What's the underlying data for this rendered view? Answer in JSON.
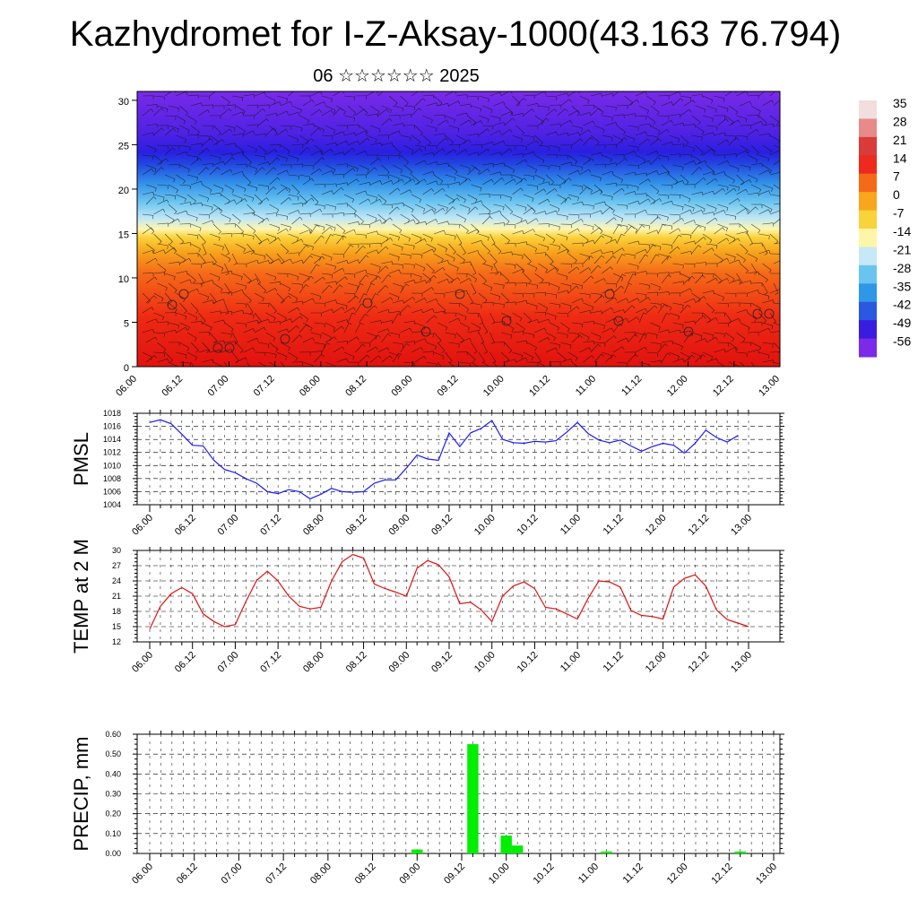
{
  "title": "Kazhydromet for I-Z-Aksay-1000(43.163 76.794)",
  "date_line": "06 ☆☆☆☆☆☆ 2025",
  "chart_data": [
    {
      "type": "heatmap",
      "panel": "upper-air",
      "description_axis": "height (km)",
      "y_ticks": [
        "0",
        "5",
        "10",
        "15",
        "20",
        "25",
        "30"
      ],
      "ylim": [
        0,
        31
      ],
      "x_ticks": [
        "06.00",
        "06.12",
        "07.00",
        "07.12",
        "08.00",
        "08.12",
        "09.00",
        "09.12",
        "10.00",
        "10.12",
        "11.00",
        "11.12",
        "12.00",
        "12.12",
        "13.00"
      ],
      "colorbar_labels": [
        "35",
        "28",
        "21",
        "14",
        "7",
        "0",
        "-7",
        "-14",
        "-21",
        "-28",
        "-35",
        "-42",
        "-49",
        "-56"
      ],
      "colorbar_colors": [
        "#f2dede",
        "#e88a8a",
        "#d93a3a",
        "#ee2a1e",
        "#f56a18",
        "#f7a61e",
        "#f9d33a",
        "#fdf6a8",
        "#c7e8f6",
        "#6ac4f0",
        "#2f97e8",
        "#2a58e0",
        "#3a1be0",
        "#7a2ae8"
      ],
      "wind_barbs": true
    },
    {
      "type": "line",
      "ylabel": "PMSL",
      "ylim": [
        1004,
        1018
      ],
      "y_ticks": [
        "1004",
        "1006",
        "1008",
        "1010",
        "1012",
        "1014",
        "1016",
        "1018"
      ],
      "x_ticks": [
        "06.00",
        "06.12",
        "07.00",
        "07.12",
        "08.00",
        "08.12",
        "09.00",
        "09.12",
        "10.00",
        "10.12",
        "11.00",
        "11.12",
        "12.00",
        "12.12",
        "13.00"
      ],
      "x_step_hours": 3,
      "color": "#1a1aff",
      "values": [
        1016.6,
        1017.0,
        1016.4,
        1014.8,
        1013.1,
        1013.0,
        1010.8,
        1009.4,
        1008.9,
        1008.0,
        1007.3,
        1006.0,
        1005.7,
        1006.3,
        1006.0,
        1004.9,
        1005.6,
        1006.5,
        1006.0,
        1005.9,
        1006.0,
        1007.3,
        1007.8,
        1007.8,
        1009.6,
        1011.6,
        1011.0,
        1010.8,
        1015.0,
        1012.9,
        1015.0,
        1015.7,
        1016.9,
        1014.0,
        1013.5,
        1013.4,
        1013.7,
        1013.6,
        1013.8,
        1015.1,
        1016.6,
        1014.9,
        1013.9,
        1013.5,
        1013.9,
        1013.0,
        1012.2,
        1012.9,
        1013.4,
        1013.1,
        1011.9,
        1013.4,
        1015.4,
        1014.3,
        1013.6,
        1014.6
      ]
    },
    {
      "type": "line",
      "ylabel": "TEMP at 2 M",
      "ylim": [
        12,
        30
      ],
      "y_ticks": [
        "12",
        "15",
        "18",
        "21",
        "24",
        "27",
        "30"
      ],
      "x_ticks": [
        "06.00",
        "06.12",
        "07.00",
        "07.12",
        "08.00",
        "08.12",
        "09.00",
        "09.12",
        "10.00",
        "10.12",
        "11.00",
        "11.12",
        "12.00",
        "12.12",
        "13.00"
      ],
      "x_step_hours": 3,
      "color": "#e01010",
      "values": [
        14.5,
        19.0,
        21.5,
        22.7,
        21.5,
        17.5,
        16.0,
        15.0,
        15.4,
        20.0,
        24.1,
        25.9,
        24.0,
        21.0,
        19.0,
        18.5,
        18.8,
        24.0,
        27.8,
        29.2,
        28.5,
        23.4,
        22.5,
        21.8,
        21.0,
        26.5,
        28.0,
        27.2,
        24.8,
        19.5,
        19.8,
        18.3,
        16.0,
        21.0,
        23.0,
        23.8,
        22.5,
        18.8,
        18.5,
        17.5,
        16.5,
        20.6,
        24.0,
        23.8,
        22.8,
        18.2,
        17.2,
        17.0,
        16.5,
        22.8,
        24.5,
        25.2,
        23.0,
        18.3,
        16.4,
        15.7,
        15.0
      ]
    },
    {
      "type": "bar",
      "ylabel": "PRECIP, mm",
      "ylim": [
        0,
        0.6
      ],
      "y_ticks": [
        "0.00",
        "0.10",
        "0.20",
        "0.30",
        "0.40",
        "0.50",
        "0.60"
      ],
      "x_ticks": [
        "06.00",
        "06.12",
        "07.00",
        "07.12",
        "08.00",
        "08.12",
        "09.00",
        "09.12",
        "10.00",
        "10.12",
        "11.00",
        "11.12",
        "12.00",
        "12.12",
        "13.00"
      ],
      "x_step_hours": 3,
      "color": "#00ee00",
      "bars": [
        {
          "hour": 72,
          "value": 0.02
        },
        {
          "hour": 87,
          "value": 0.55
        },
        {
          "hour": 96,
          "value": 0.09
        },
        {
          "hour": 99,
          "value": 0.04
        },
        {
          "hour": 123,
          "value": 0.01
        },
        {
          "hour": 159,
          "value": 0.01
        }
      ]
    }
  ]
}
